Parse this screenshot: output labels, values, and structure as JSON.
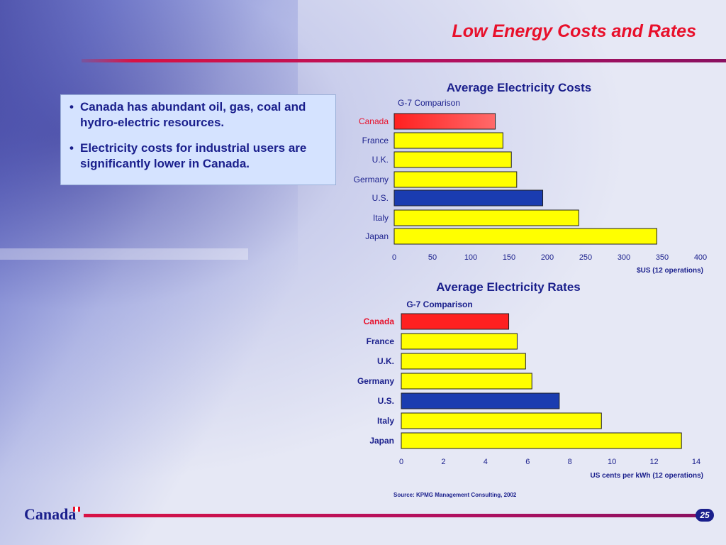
{
  "slide": {
    "title": "Low Energy Costs and Rates",
    "bullets": [
      "Canada has abundant oil, gas, coal and hydro-electric resources.",
      "Electricity costs for industrial users are significantly lower in Canada."
    ],
    "bullet_marker": "•",
    "source": "Source:  KPMG Management Consulting, 2002",
    "footer_brand": "Canada",
    "page_number": "25"
  },
  "colors": {
    "title": "#e8102b",
    "text": "#1a1f8c",
    "canada_bar": "#ff2020",
    "us_bar": "#1a3cb0",
    "other_bar": "#ffff00"
  },
  "chart_data": [
    {
      "type": "bar",
      "orientation": "horizontal",
      "title": "Average Electricity Costs",
      "subtitle": "G-7 Comparison",
      "xlabel": "$US  (12 operations)",
      "categories": [
        "Canada",
        "France",
        "U.K.",
        "Germany",
        "U.S.",
        "Italy",
        "Japan"
      ],
      "values": [
        132,
        142,
        153,
        160,
        194,
        241,
        343
      ],
      "xlim": [
        0,
        400
      ],
      "xticks": [
        "0",
        "50",
        "100",
        "150",
        "200",
        "250",
        "300",
        "350",
        "400"
      ],
      "bar_colors": [
        "#ff2020",
        "#ffff00",
        "#ffff00",
        "#ffff00",
        "#1a3cb0",
        "#ffff00",
        "#ffff00"
      ],
      "highlight_label": "Canada",
      "grid": false
    },
    {
      "type": "bar",
      "orientation": "horizontal",
      "title": "Average Electricity Rates",
      "subtitle": "G-7 Comparison",
      "xlabel": "US cents per kWh (12 operations)",
      "categories": [
        "Canada",
        "France",
        "U.K.",
        "Germany",
        "U.S.",
        "Italy",
        "Japan"
      ],
      "values": [
        5.1,
        5.5,
        5.9,
        6.2,
        7.5,
        9.5,
        13.3
      ],
      "xlim": [
        0,
        14
      ],
      "xticks": [
        "0",
        "2",
        "4",
        "6",
        "8",
        "10",
        "12",
        "14"
      ],
      "bar_colors": [
        "#ff2020",
        "#ffff00",
        "#ffff00",
        "#ffff00",
        "#1a3cb0",
        "#ffff00",
        "#ffff00"
      ],
      "highlight_label": "Canada",
      "grid": false
    }
  ]
}
